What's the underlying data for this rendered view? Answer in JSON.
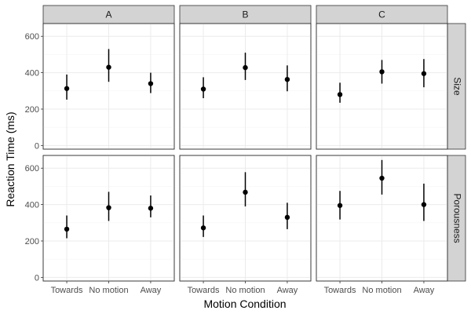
{
  "chart_data": {
    "type": "scatter",
    "xlabel": "Motion Condition",
    "ylabel": "Reaction Time (ms)",
    "ylim": [
      -20,
      670
    ],
    "yticks": [
      0,
      200,
      400,
      600
    ],
    "categories": [
      "Towards",
      "No motion",
      "Away"
    ],
    "col_facets": [
      "A",
      "B",
      "C"
    ],
    "row_facets": [
      "Size",
      "Porousness"
    ],
    "grid": true,
    "panels": [
      {
        "row": "Size",
        "col": "A",
        "points": [
          {
            "x": "Towards",
            "y": 313,
            "ymin": 252,
            "ymax": 390
          },
          {
            "x": "No motion",
            "y": 430,
            "ymin": 350,
            "ymax": 530
          },
          {
            "x": "Away",
            "y": 340,
            "ymin": 288,
            "ymax": 400
          }
        ]
      },
      {
        "row": "Size",
        "col": "B",
        "points": [
          {
            "x": "Towards",
            "y": 310,
            "ymin": 260,
            "ymax": 375
          },
          {
            "x": "No motion",
            "y": 428,
            "ymin": 360,
            "ymax": 510
          },
          {
            "x": "Away",
            "y": 363,
            "ymin": 298,
            "ymax": 440
          }
        ]
      },
      {
        "row": "Size",
        "col": "C",
        "points": [
          {
            "x": "Towards",
            "y": 280,
            "ymin": 235,
            "ymax": 345
          },
          {
            "x": "No motion",
            "y": 405,
            "ymin": 340,
            "ymax": 470
          },
          {
            "x": "Away",
            "y": 395,
            "ymin": 320,
            "ymax": 475
          }
        ]
      },
      {
        "row": "Porousness",
        "col": "A",
        "points": [
          {
            "x": "Towards",
            "y": 265,
            "ymin": 215,
            "ymax": 340
          },
          {
            "x": "No motion",
            "y": 383,
            "ymin": 310,
            "ymax": 470
          },
          {
            "x": "Away",
            "y": 380,
            "ymin": 330,
            "ymax": 450
          }
        ]
      },
      {
        "row": "Porousness",
        "col": "B",
        "points": [
          {
            "x": "Towards",
            "y": 272,
            "ymin": 222,
            "ymax": 340
          },
          {
            "x": "No motion",
            "y": 468,
            "ymin": 390,
            "ymax": 578
          },
          {
            "x": "Away",
            "y": 330,
            "ymin": 265,
            "ymax": 410
          }
        ]
      },
      {
        "row": "Porousness",
        "col": "C",
        "points": [
          {
            "x": "Towards",
            "y": 395,
            "ymin": 318,
            "ymax": 475
          },
          {
            "x": "No motion",
            "y": 545,
            "ymin": 455,
            "ymax": 645
          },
          {
            "x": "Away",
            "y": 400,
            "ymin": 310,
            "ymax": 515
          }
        ]
      }
    ]
  }
}
